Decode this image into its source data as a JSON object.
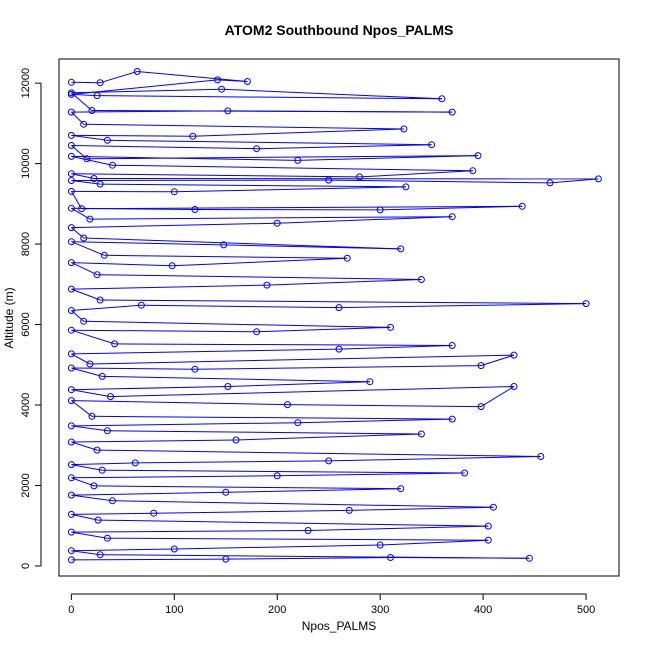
{
  "chart_data": {
    "type": "scatter",
    "title": "ATOM2 Southbound Npos_PALMS",
    "xlabel": "Npos_PALMS",
    "ylabel": "Altitude (m)",
    "xlim": [
      -12,
      532
    ],
    "ylim": [
      -250,
      12600
    ],
    "xticks": [
      0,
      100,
      200,
      300,
      400,
      500
    ],
    "yticks": [
      0,
      2000,
      4000,
      6000,
      8000,
      10000,
      12000
    ],
    "grid": false,
    "legend": "none",
    "series": [
      {
        "color": "#0000ff",
        "marker": "open-circle",
        "connected": true,
        "points": [
          [
            0,
            12020
          ],
          [
            28,
            12010
          ],
          [
            64,
            12290
          ],
          [
            171,
            12040
          ],
          [
            142,
            12080
          ],
          [
            0,
            11720
          ],
          [
            25,
            11690
          ],
          [
            360,
            11610
          ],
          [
            146,
            11850
          ],
          [
            0,
            11760
          ],
          [
            20,
            11320
          ],
          [
            370,
            11280
          ],
          [
            152,
            11310
          ],
          [
            0,
            11280
          ],
          [
            12,
            10980
          ],
          [
            323,
            10860
          ],
          [
            118,
            10680
          ],
          [
            0,
            10700
          ],
          [
            35,
            10580
          ],
          [
            350,
            10470
          ],
          [
            180,
            10370
          ],
          [
            0,
            10450
          ],
          [
            15,
            10120
          ],
          [
            395,
            10200
          ],
          [
            220,
            10080
          ],
          [
            0,
            10180
          ],
          [
            40,
            9960
          ],
          [
            390,
            9820
          ],
          [
            280,
            9670
          ],
          [
            0,
            9750
          ],
          [
            22,
            9630
          ],
          [
            512,
            9620
          ],
          [
            465,
            9520
          ],
          [
            250,
            9590
          ],
          [
            0,
            9580
          ],
          [
            28,
            9490
          ],
          [
            325,
            9420
          ],
          [
            100,
            9300
          ],
          [
            0,
            9310
          ],
          [
            10,
            8880
          ],
          [
            438,
            8940
          ],
          [
            300,
            8850
          ],
          [
            120,
            8860
          ],
          [
            0,
            8890
          ],
          [
            18,
            8620
          ],
          [
            370,
            8680
          ],
          [
            200,
            8520
          ],
          [
            0,
            8410
          ],
          [
            12,
            8150
          ],
          [
            320,
            7880
          ],
          [
            148,
            7980
          ],
          [
            0,
            8060
          ],
          [
            32,
            7720
          ],
          [
            268,
            7650
          ],
          [
            98,
            7460
          ],
          [
            0,
            7540
          ],
          [
            25,
            7240
          ],
          [
            340,
            7120
          ],
          [
            190,
            6980
          ],
          [
            0,
            6880
          ],
          [
            28,
            6610
          ],
          [
            500,
            6520
          ],
          [
            260,
            6420
          ],
          [
            68,
            6480
          ],
          [
            0,
            6350
          ],
          [
            12,
            6080
          ],
          [
            310,
            5930
          ],
          [
            180,
            5820
          ],
          [
            0,
            5860
          ],
          [
            42,
            5520
          ],
          [
            370,
            5480
          ],
          [
            260,
            5390
          ],
          [
            0,
            5270
          ],
          [
            18,
            5020
          ],
          [
            430,
            5240
          ],
          [
            398,
            4980
          ],
          [
            120,
            4890
          ],
          [
            0,
            4920
          ],
          [
            30,
            4710
          ],
          [
            290,
            4580
          ],
          [
            152,
            4460
          ],
          [
            0,
            4380
          ],
          [
            38,
            4210
          ],
          [
            430,
            4460
          ],
          [
            398,
            3960
          ],
          [
            210,
            4010
          ],
          [
            0,
            4110
          ],
          [
            20,
            3720
          ],
          [
            370,
            3650
          ],
          [
            220,
            3560
          ],
          [
            0,
            3480
          ],
          [
            35,
            3360
          ],
          [
            340,
            3280
          ],
          [
            160,
            3130
          ],
          [
            0,
            3080
          ],
          [
            25,
            2880
          ],
          [
            456,
            2720
          ],
          [
            250,
            2610
          ],
          [
            62,
            2560
          ],
          [
            0,
            2520
          ],
          [
            30,
            2380
          ],
          [
            382,
            2310
          ],
          [
            200,
            2240
          ],
          [
            0,
            2190
          ],
          [
            22,
            1990
          ],
          [
            320,
            1920
          ],
          [
            150,
            1830
          ],
          [
            0,
            1760
          ],
          [
            40,
            1620
          ],
          [
            410,
            1460
          ],
          [
            270,
            1380
          ],
          [
            80,
            1310
          ],
          [
            0,
            1280
          ],
          [
            26,
            1140
          ],
          [
            405,
            990
          ],
          [
            230,
            880
          ],
          [
            0,
            840
          ],
          [
            35,
            690
          ],
          [
            405,
            640
          ],
          [
            300,
            520
          ],
          [
            100,
            420
          ],
          [
            0,
            380
          ],
          [
            28,
            280
          ],
          [
            445,
            190
          ],
          [
            310,
            210
          ],
          [
            150,
            170
          ],
          [
            0,
            150
          ]
        ]
      }
    ]
  }
}
